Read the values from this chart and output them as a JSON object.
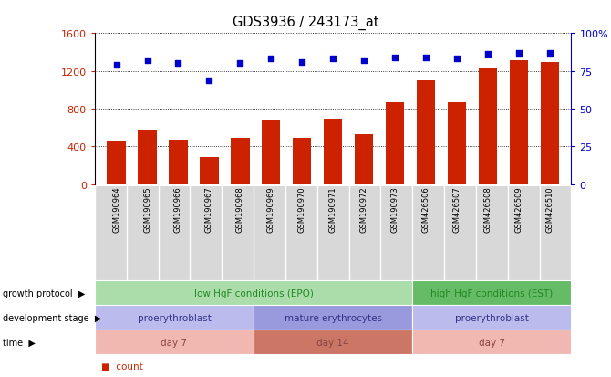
{
  "title": "GDS3936 / 243173_at",
  "samples": [
    "GSM190964",
    "GSM190965",
    "GSM190966",
    "GSM190967",
    "GSM190968",
    "GSM190969",
    "GSM190970",
    "GSM190971",
    "GSM190972",
    "GSM190973",
    "GSM426506",
    "GSM426507",
    "GSM426508",
    "GSM426509",
    "GSM426510"
  ],
  "counts": [
    450,
    580,
    470,
    290,
    490,
    680,
    490,
    690,
    530,
    870,
    1100,
    870,
    1230,
    1310,
    1290
  ],
  "percentiles": [
    79,
    82,
    80,
    69,
    80,
    83,
    81,
    83,
    82,
    84,
    84,
    83,
    86,
    87,
    87
  ],
  "bar_color": "#cc2200",
  "dot_color": "#0000cc",
  "left_ylim": [
    0,
    1600
  ],
  "right_ylim": [
    0,
    100
  ],
  "left_yticks": [
    0,
    400,
    800,
    1200,
    1600
  ],
  "right_yticks": [
    0,
    25,
    50,
    75,
    100
  ],
  "right_yticklabels": [
    "0",
    "25",
    "50",
    "75",
    "100%"
  ],
  "xlabel_bg": "#d8d8d8",
  "annotation_rows": [
    {
      "label": "growth protocol",
      "segments": [
        {
          "start": 0,
          "end": 10,
          "text": "low HgF conditions (EPO)",
          "color": "#aaddaa",
          "text_color": "#228822"
        },
        {
          "start": 10,
          "end": 15,
          "text": "high HgF conditions (EST)",
          "color": "#66bb66",
          "text_color": "#228822"
        }
      ]
    },
    {
      "label": "development stage",
      "segments": [
        {
          "start": 0,
          "end": 5,
          "text": "proerythroblast",
          "color": "#bbbbee",
          "text_color": "#333388"
        },
        {
          "start": 5,
          "end": 10,
          "text": "mature erythrocytes",
          "color": "#9999dd",
          "text_color": "#333388"
        },
        {
          "start": 10,
          "end": 15,
          "text": "proerythroblast",
          "color": "#bbbbee",
          "text_color": "#333388"
        }
      ]
    },
    {
      "label": "time",
      "segments": [
        {
          "start": 0,
          "end": 5,
          "text": "day 7",
          "color": "#f0b8b0",
          "text_color": "#884444"
        },
        {
          "start": 5,
          "end": 10,
          "text": "day 14",
          "color": "#cc7766",
          "text_color": "#884444"
        },
        {
          "start": 10,
          "end": 15,
          "text": "day 7",
          "color": "#f0b8b0",
          "text_color": "#884444"
        }
      ]
    }
  ]
}
